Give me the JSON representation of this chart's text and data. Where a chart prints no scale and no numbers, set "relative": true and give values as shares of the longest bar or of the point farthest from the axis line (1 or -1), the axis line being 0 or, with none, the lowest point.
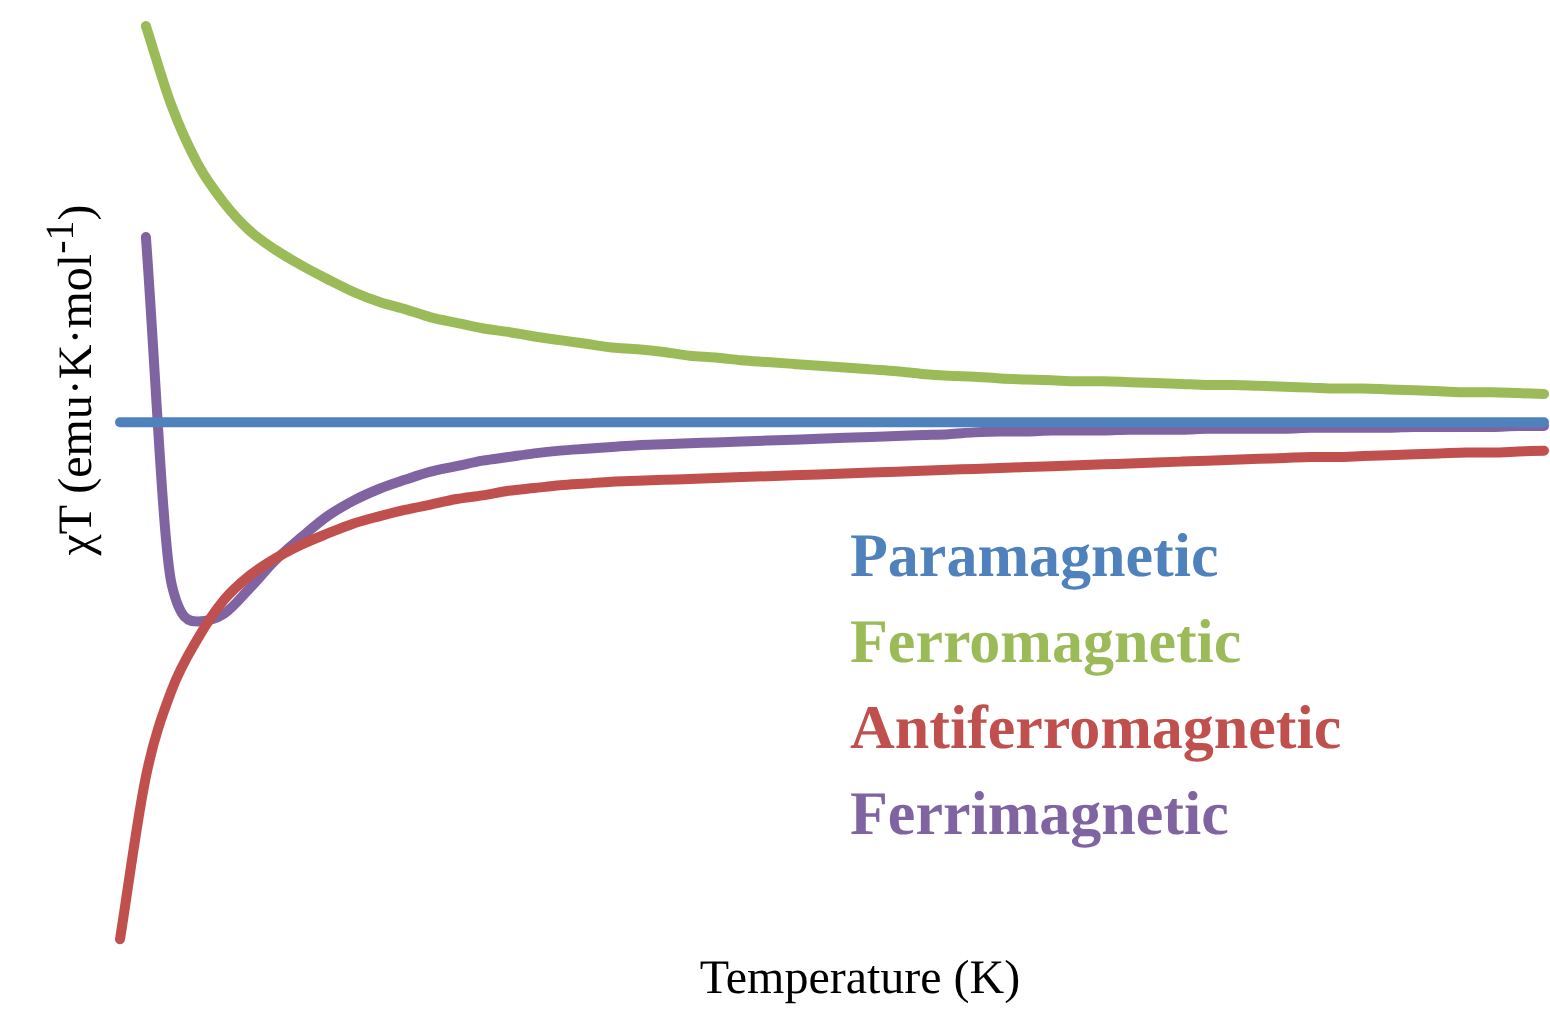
{
  "chart_data": {
    "type": "line",
    "relative": true,
    "xlabel": "Temperature (K)",
    "ylabel": "χT (emu·K·mol$^{-1}$)",
    "legend": "right",
    "marker": "none",
    "line_style": "solid",
    "categories": [
      null,
      null,
      null,
      null,
      null,
      null,
      null,
      null,
      null,
      null,
      null,
      null,
      null,
      null,
      null,
      null,
      null,
      null,
      null,
      null,
      null,
      null,
      null,
      null,
      null,
      null,
      null,
      null,
      null,
      null,
      null,
      null,
      null,
      null,
      null,
      null,
      null,
      null,
      null,
      null,
      null,
      null,
      null,
      null,
      null,
      null,
      null,
      null,
      null,
      null,
      null,
      null,
      null,
      null,
      null,
      null
    ],
    "series": [
      {
        "name": "Paramagnetic",
        "color": "#4f81bd",
        "values": [
          0.566,
          0.566,
          0.566,
          0.566,
          0.566,
          0.566,
          0.566,
          0.566,
          0.566,
          0.566,
          0.566,
          0.566,
          0.566,
          0.566,
          0.566,
          0.566,
          0.566,
          0.566,
          0.566,
          0.566,
          0.566,
          0.566,
          0.566,
          0.566,
          0.566,
          0.566,
          0.566,
          0.566,
          0.566,
          0.566,
          0.566,
          0.566,
          0.566,
          0.566,
          0.566,
          0.566,
          0.566,
          0.566,
          0.566,
          0.566,
          0.566,
          0.566,
          0.566,
          0.566,
          0.566,
          0.566,
          0.566,
          0.566,
          0.566,
          0.566,
          0.566,
          0.566,
          0.566,
          0.566,
          0.566,
          0.566
        ]
      },
      {
        "name": "Ferromagnetic",
        "color": "#9bbb59",
        "values": [
          null,
          1.0,
          0.912,
          0.849,
          0.807,
          0.776,
          0.755,
          0.738,
          0.723,
          0.709,
          0.698,
          0.69,
          0.681,
          0.675,
          0.669,
          0.665,
          0.66,
          0.656,
          0.652,
          0.648,
          0.646,
          0.643,
          0.639,
          0.637,
          0.634,
          0.632,
          0.63,
          0.628,
          0.626,
          0.624,
          0.622,
          0.619,
          0.617,
          0.616,
          0.614,
          0.613,
          0.612,
          0.611,
          0.611,
          0.61,
          0.609,
          0.608,
          0.607,
          0.607,
          0.606,
          0.605,
          0.604,
          0.603,
          0.603,
          0.602,
          0.601,
          0.6,
          0.599,
          0.599,
          0.598,
          0.597
        ]
      },
      {
        "name": "Antiferromagnetic",
        "color": "#c0504d",
        "values": [
          0,
          0.178,
          0.273,
          0.329,
          0.371,
          0.398,
          0.417,
          0.432,
          0.444,
          0.455,
          0.463,
          0.47,
          0.476,
          0.482,
          0.486,
          0.491,
          0.494,
          0.497,
          0.499,
          0.501,
          0.502,
          0.503,
          0.504,
          0.505,
          0.506,
          0.507,
          0.508,
          0.509,
          0.51,
          0.511,
          0.512,
          0.513,
          0.514,
          0.515,
          0.516,
          0.517,
          0.518,
          0.519,
          0.52,
          0.521,
          0.522,
          0.523,
          0.524,
          0.525,
          0.526,
          0.527,
          0.528,
          0.528,
          0.529,
          0.53,
          0.531,
          0.532,
          0.533,
          0.533,
          0.534,
          0.535
        ]
      },
      {
        "name": "Ferrimagnetic",
        "color": "#8064a2",
        "values": [
          null,
          0.769,
          0.388,
          0.348,
          0.356,
          0.384,
          0.415,
          0.44,
          0.463,
          0.48,
          0.493,
          0.503,
          0.512,
          0.518,
          0.524,
          0.528,
          0.532,
          0.535,
          0.537,
          0.539,
          0.541,
          0.542,
          0.543,
          0.544,
          0.545,
          0.546,
          0.547,
          0.548,
          0.549,
          0.55,
          0.551,
          0.552,
          0.553,
          0.555,
          0.556,
          0.556,
          0.557,
          0.557,
          0.557,
          0.558,
          0.558,
          0.558,
          0.559,
          0.559,
          0.559,
          0.559,
          0.56,
          0.56,
          0.56,
          0.56,
          0.561,
          0.561,
          0.561,
          0.561,
          0.562,
          0.562
        ]
      }
    ]
  }
}
